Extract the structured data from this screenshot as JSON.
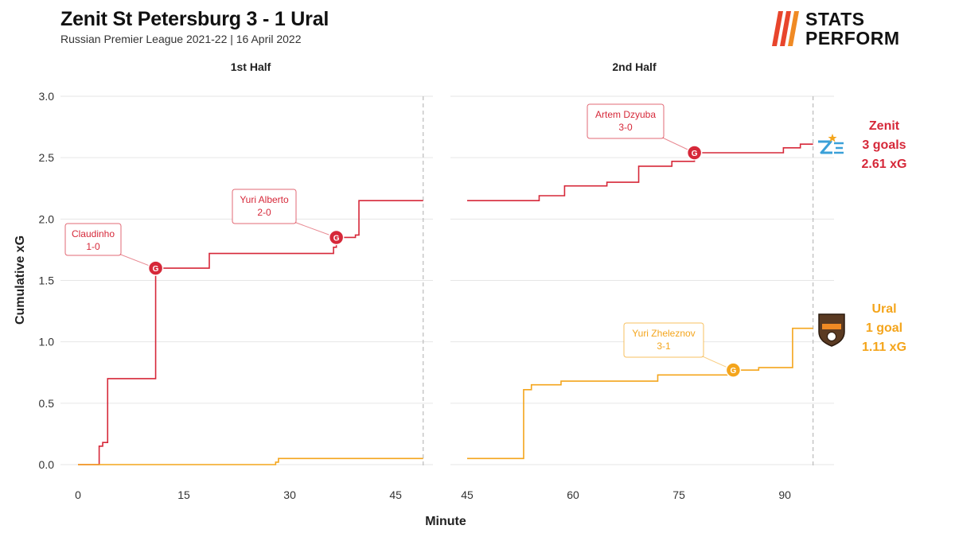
{
  "header": {
    "title": "Zenit St Petersburg 3 - 1 Ural",
    "subtitle": "Russian Premier League 2021-22 | 16 April 2022"
  },
  "brand": {
    "line1": "STATS",
    "line2": "PERFORM",
    "accent": "#e8452c"
  },
  "colors": {
    "zenit": "#d62839",
    "ural": "#f4a51c",
    "grid": "#e6e6e6",
    "dashed": "#bbbbbb"
  },
  "chart_data": {
    "type": "line",
    "title": "Zenit St Petersburg 3 - 1 Ural",
    "xlabel": "Minute",
    "ylabel": "Cumulative xG",
    "ylim": [
      0,
      3
    ],
    "yticks": [
      "0.0",
      "0.5",
      "1.0",
      "1.5",
      "2.0",
      "2.5",
      "3.0"
    ],
    "panels": [
      {
        "label": "1st Half",
        "xlim": [
          0,
          48.9
        ],
        "end_minute": 48.9,
        "xticks": [
          "0",
          "15",
          "30",
          "45"
        ]
      },
      {
        "label": "2nd Half",
        "xlim": [
          45,
          95.5
        ],
        "end_minute": 94,
        "xticks": [
          "45",
          "60",
          "75",
          "90"
        ]
      }
    ],
    "series": [
      {
        "name": "Zenit",
        "team_label": "Zenit",
        "goals_label": "3 goals",
        "xg_label": "2.61 xG",
        "color": "#d62839",
        "steps": [
          [
            [
              0,
              0
            ],
            [
              3,
              0.15
            ],
            [
              3.5,
              0.18
            ],
            [
              4.2,
              0.7
            ],
            [
              11,
              1.6
            ],
            [
              18.6,
              1.72
            ],
            [
              36.2,
              1.77
            ],
            [
              36.6,
              1.85
            ],
            [
              39.3,
              1.87
            ],
            [
              39.8,
              2.15
            ]
          ],
          [
            [
              45,
              2.15
            ],
            [
              55.2,
              2.19
            ],
            [
              58.8,
              2.27
            ],
            [
              64.8,
              2.3
            ],
            [
              69.3,
              2.43
            ],
            [
              74,
              2.47
            ],
            [
              77.2,
              2.54
            ],
            [
              89.8,
              2.58
            ],
            [
              92.2,
              2.61
            ]
          ]
        ],
        "goals": [
          {
            "half": 0,
            "minute": 11,
            "xg": 1.6,
            "player": "Claudinho",
            "score": "1-0",
            "marker": "G"
          },
          {
            "half": 0,
            "minute": 36.6,
            "xg": 1.85,
            "player": "Yuri Alberto",
            "score": "2-0",
            "marker": "G"
          },
          {
            "half": 1,
            "minute": 77.2,
            "xg": 2.54,
            "player": "Artem Dzyuba",
            "score": "3-0",
            "marker": "G"
          }
        ]
      },
      {
        "name": "Ural",
        "team_label": "Ural",
        "goals_label": "1 goal",
        "xg_label": "1.11 xG",
        "color": "#f4a51c",
        "steps": [
          [
            [
              0,
              0
            ],
            [
              28,
              0.02
            ],
            [
              28.4,
              0.05
            ]
          ],
          [
            [
              45,
              0.05
            ],
            [
              53,
              0.61
            ],
            [
              54.1,
              0.65
            ],
            [
              58.3,
              0.68
            ],
            [
              72,
              0.73
            ],
            [
              83.1,
              0.77
            ],
            [
              86.3,
              0.79
            ],
            [
              91.1,
              1.11
            ]
          ]
        ],
        "goals": [
          {
            "half": 1,
            "minute": 82.7,
            "xg": 0.77,
            "player": "Yuri Zheleznov",
            "score": "3-1",
            "marker": "G"
          }
        ]
      }
    ]
  }
}
